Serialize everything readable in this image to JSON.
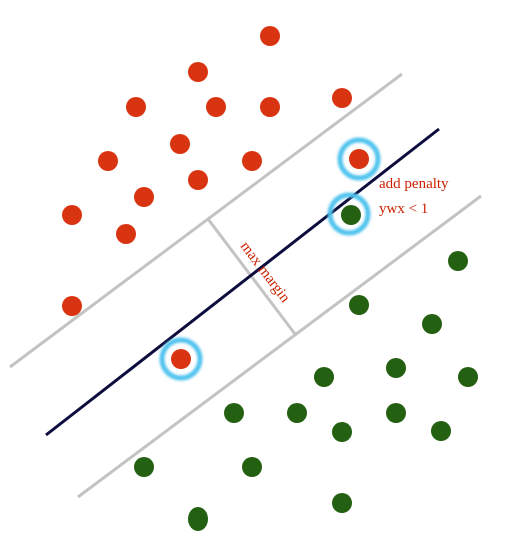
{
  "labels": {
    "margin": "max margin",
    "penalty_line1": "add penalty",
    "penalty_line2": "ywx < 1"
  },
  "colors": {
    "class_red": "#d93411",
    "class_green": "#236012",
    "decision_boundary": "#0c0c3d",
    "margin_lines": "#c3c3c3",
    "highlight_ring": "#4fc3ee",
    "label_text": "#cc2200"
  }
}
